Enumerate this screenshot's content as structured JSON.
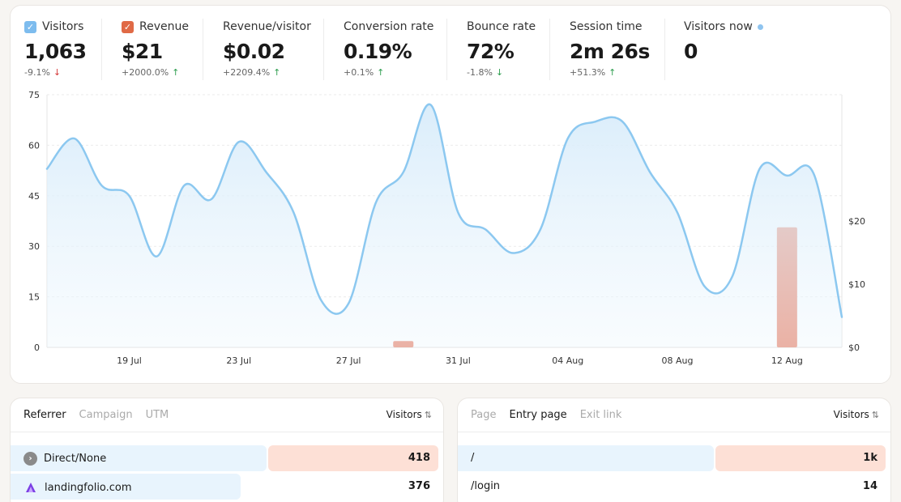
{
  "kpis": [
    {
      "label": "Visitors",
      "value": "1,063",
      "delta": "-9.1%",
      "trend": "down",
      "checkbox": "blue"
    },
    {
      "label": "Revenue",
      "value": "$21",
      "delta": "+2000.0%",
      "trend": "up",
      "checkbox": "red"
    },
    {
      "label": "Revenue/visitor",
      "value": "$0.02",
      "delta": "+2209.4%",
      "trend": "up"
    },
    {
      "label": "Conversion rate",
      "value": "0.19%",
      "delta": "+0.1%",
      "trend": "up"
    },
    {
      "label": "Bounce rate",
      "value": "72%",
      "delta": "-1.8%",
      "trend": "down-good"
    },
    {
      "label": "Session time",
      "value": "2m 26s",
      "delta": "+51.3%",
      "trend": "up"
    },
    {
      "label": "Visitors now",
      "value": "0"
    }
  ],
  "colors": {
    "visitors_line": "#8cc8f0",
    "revenue_bar": "#e8836a",
    "up": "#2e9e4f",
    "down": "#d43a3a"
  },
  "chart_data": {
    "type": "line",
    "x_tick_labels": [
      "19 Jul",
      "23 Jul",
      "27 Jul",
      "31 Jul",
      "04 Aug",
      "08 Aug",
      "12 Aug"
    ],
    "y_left_ticks": [
      "75",
      "60",
      "45",
      "30",
      "15",
      "0"
    ],
    "y_right_ticks": [
      "$20",
      "$10",
      "$0"
    ],
    "ylim_left": [
      0,
      75
    ],
    "ylim_right": [
      0,
      40
    ],
    "series": [
      {
        "name": "Visitors",
        "x": [
          "16 Jul",
          "17 Jul",
          "18 Jul",
          "19 Jul",
          "20 Jul",
          "21 Jul",
          "22 Jul",
          "23 Jul",
          "24 Jul",
          "25 Jul",
          "26 Jul",
          "27 Jul",
          "28 Jul",
          "29 Jul",
          "30 Jul",
          "31 Jul",
          "01 Aug",
          "02 Aug",
          "03 Aug",
          "04 Aug",
          "05 Aug",
          "06 Aug",
          "07 Aug",
          "08 Aug",
          "09 Aug",
          "10 Aug",
          "11 Aug",
          "12 Aug",
          "13 Aug",
          "14 Aug"
        ],
        "values": [
          53,
          62,
          48,
          45,
          27,
          48,
          44,
          61,
          52,
          40,
          14,
          13,
          43,
          52,
          72,
          40,
          35,
          28,
          35,
          62,
          67,
          67,
          52,
          40,
          18,
          21,
          53,
          51,
          51,
          9
        ]
      },
      {
        "name": "Revenue",
        "type": "bar",
        "x": [
          "29 Jul",
          "12 Aug"
        ],
        "values": [
          1,
          19
        ]
      }
    ]
  },
  "referrer_panel": {
    "tabs": [
      "Referrer",
      "Campaign",
      "UTM"
    ],
    "active_tab": 0,
    "column": "Visitors",
    "rows": [
      {
        "label": "Direct/None",
        "value": "418",
        "icon": "globe-icon"
      },
      {
        "label": "landingfolio.com",
        "value": "376",
        "icon": "landingfolio-logo-icon"
      }
    ]
  },
  "page_panel": {
    "tabs": [
      "Page",
      "Entry page",
      "Exit link"
    ],
    "active_tab": 1,
    "column": "Visitors",
    "rows": [
      {
        "label": "/",
        "value": "1k"
      },
      {
        "label": "/login",
        "value": "14"
      }
    ]
  }
}
